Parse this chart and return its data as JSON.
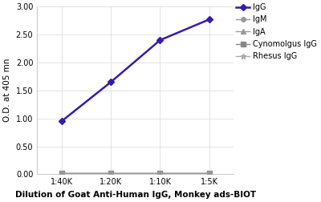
{
  "x_labels": [
    "1:40K",
    "1:20K",
    "1:10K",
    "1:5K"
  ],
  "x_values": [
    1,
    2,
    3,
    4
  ],
  "series": [
    {
      "name": "IgG",
      "y": [
        0.95,
        1.65,
        2.4,
        2.77
      ],
      "color": "#3a1aaa",
      "marker": "D",
      "markersize": 4,
      "linewidth": 1.8,
      "zorder": 5
    },
    {
      "name": "IgM",
      "y": [
        0.02,
        0.02,
        0.02,
        0.02
      ],
      "color": "#999999",
      "marker": "o",
      "markersize": 4,
      "linewidth": 1.0,
      "zorder": 4
    },
    {
      "name": "IgA",
      "y": [
        0.02,
        0.02,
        0.02,
        0.02
      ],
      "color": "#999999",
      "marker": "^",
      "markersize": 4,
      "linewidth": 1.0,
      "zorder": 3
    },
    {
      "name": "Cynomolgus IgG",
      "y": [
        0.02,
        0.02,
        0.02,
        0.02
      ],
      "color": "#888888",
      "marker": "s",
      "markersize": 4,
      "linewidth": 1.0,
      "zorder": 2
    },
    {
      "name": "Rhesus IgG",
      "y": [
        0.02,
        0.02,
        0.02,
        0.02
      ],
      "color": "#aaaaaa",
      "marker": "*",
      "markersize": 5,
      "linewidth": 1.0,
      "zorder": 1
    }
  ],
  "ylabel": "O.D. at 405 mn",
  "xlabel": "Dilution of Goat Anti-Human IgG, Monkey ads-BIOT",
  "ylim": [
    0.0,
    3.0
  ],
  "yticks": [
    0.0,
    0.5,
    1.0,
    1.5,
    2.0,
    2.5,
    3.0
  ],
  "background_color": "#ffffff",
  "grid_color": "#d8d8d8",
  "ylabel_fontsize": 7.5,
  "xlabel_fontsize": 7.5,
  "tick_fontsize": 7,
  "legend_fontsize": 7
}
